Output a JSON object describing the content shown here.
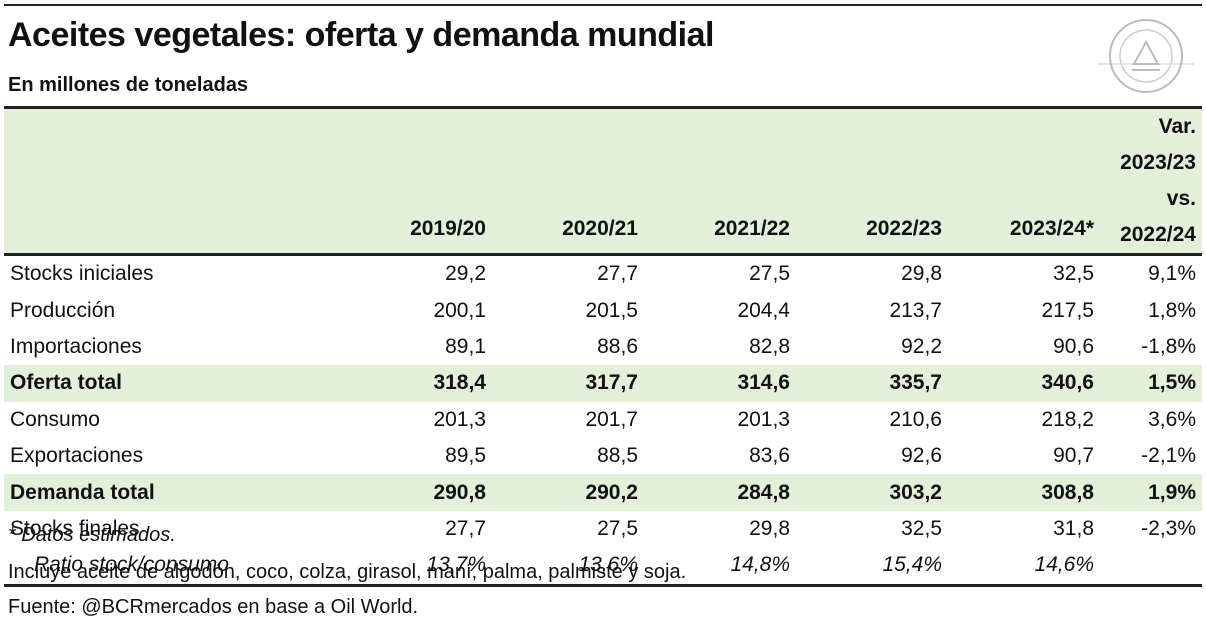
{
  "header": {
    "title": "Aceites vegetales: oferta y demanda mundial",
    "subtitle": "En millones de toneladas"
  },
  "table": {
    "columns": [
      "2019/20",
      "2020/21",
      "2021/22",
      "2022/23",
      "2023/24*"
    ],
    "var_header": [
      "Var. 2023/23",
      "vs. 2022/24"
    ],
    "rows": [
      {
        "label": "Stocks iniciales",
        "values": [
          "29,2",
          "27,7",
          "27,5",
          "29,8",
          "32,5",
          "9,1%"
        ]
      },
      {
        "label": "Producción",
        "values": [
          "200,1",
          "201,5",
          "204,4",
          "213,7",
          "217,5",
          "1,8%"
        ]
      },
      {
        "label": "Importaciones",
        "values": [
          "89,1",
          "88,6",
          "82,8",
          "92,2",
          "90,6",
          "-1,8%"
        ]
      },
      {
        "label": "Oferta total",
        "values": [
          "318,4",
          "317,7",
          "314,6",
          "335,7",
          "340,6",
          "1,5%"
        ],
        "highlight": true
      },
      {
        "label": "Consumo",
        "values": [
          "201,3",
          "201,7",
          "201,3",
          "210,6",
          "218,2",
          "3,6%"
        ]
      },
      {
        "label": "Exportaciones",
        "values": [
          "89,5",
          "88,5",
          "83,6",
          "92,6",
          "90,7",
          "-2,1%"
        ]
      },
      {
        "label": "Demanda total",
        "values": [
          "290,8",
          "290,2",
          "284,8",
          "303,2",
          "308,8",
          "1,9%"
        ],
        "highlight": true
      },
      {
        "label": "Stocks finales",
        "values": [
          "27,7",
          "27,5",
          "29,8",
          "32,5",
          "31,8",
          "-2,3%"
        ]
      },
      {
        "label": "Ratio stock/consumo",
        "values": [
          "13,7%",
          "13,6%",
          "14,8%",
          "15,4%",
          "14,6%"
        ],
        "italic": true
      }
    ]
  },
  "notes": [
    "* Datos estimados.",
    "Incluye aceite de algodón, coco, colza, girasol, maní, palma, palmiste y soja.",
    "Fuente: @BCRmercados en base a Oil World."
  ]
}
